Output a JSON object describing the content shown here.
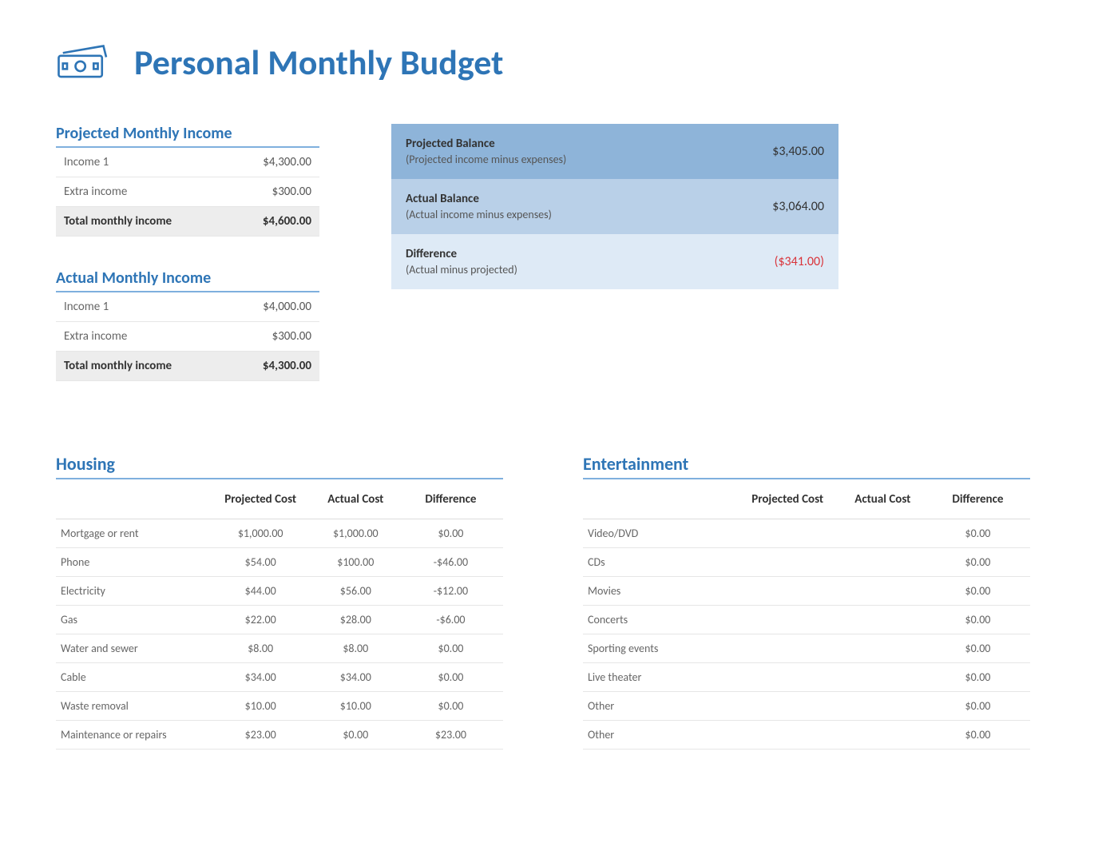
{
  "title": "Personal Monthly Budget",
  "icon_color": "#2e75b6",
  "colors": {
    "heading": "#2e75b6",
    "heading_rule": "#7fb0de",
    "row_border": "#e6e6e6",
    "total_bg": "#ededed",
    "balance_bg": [
      "#8eb4d9",
      "#b9d0e8",
      "#deeaf6"
    ],
    "negative": "#d9343a",
    "text_muted": "#666"
  },
  "projected_income": {
    "title": "Projected Monthly Income",
    "rows": [
      {
        "label": "Income 1",
        "value": "$4,300.00"
      },
      {
        "label": "Extra income",
        "value": "$300.00"
      }
    ],
    "total": {
      "label": "Total monthly income",
      "value": "$4,600.00"
    }
  },
  "actual_income": {
    "title": "Actual Monthly Income",
    "rows": [
      {
        "label": "Income 1",
        "value": "$4,000.00"
      },
      {
        "label": "Extra income",
        "value": "$300.00"
      }
    ],
    "total": {
      "label": "Total monthly income",
      "value": "$4,300.00"
    }
  },
  "balances": [
    {
      "title": "Projected Balance",
      "sub": "(Projected income minus expenses)",
      "value": "$3,405.00",
      "neg": false
    },
    {
      "title": "Actual Balance",
      "sub": "(Actual income minus expenses)",
      "value": "$3,064.00",
      "neg": false
    },
    {
      "title": "Difference",
      "sub": "(Actual minus projected)",
      "value": "($341.00)",
      "neg": true
    }
  ],
  "columns": {
    "projected": "Projected Cost",
    "actual": "Actual Cost",
    "difference": "Difference"
  },
  "housing": {
    "title": "Housing",
    "rows": [
      {
        "label": "Mortgage or rent",
        "projected": "$1,000.00",
        "actual": "$1,000.00",
        "diff": "$0.00"
      },
      {
        "label": "Phone",
        "projected": "$54.00",
        "actual": "$100.00",
        "diff": "-$46.00"
      },
      {
        "label": "Electricity",
        "projected": "$44.00",
        "actual": "$56.00",
        "diff": "-$12.00"
      },
      {
        "label": "Gas",
        "projected": "$22.00",
        "actual": "$28.00",
        "diff": "-$6.00"
      },
      {
        "label": "Water and sewer",
        "projected": "$8.00",
        "actual": "$8.00",
        "diff": "$0.00"
      },
      {
        "label": "Cable",
        "projected": "$34.00",
        "actual": "$34.00",
        "diff": "$0.00"
      },
      {
        "label": "Waste removal",
        "projected": "$10.00",
        "actual": "$10.00",
        "diff": "$0.00"
      },
      {
        "label": "Maintenance or repairs",
        "projected": "$23.00",
        "actual": "$0.00",
        "diff": "$23.00"
      }
    ]
  },
  "entertainment": {
    "title": "Entertainment",
    "rows": [
      {
        "label": "Video/DVD",
        "projected": "",
        "actual": "",
        "diff": "$0.00"
      },
      {
        "label": "CDs",
        "projected": "",
        "actual": "",
        "diff": "$0.00"
      },
      {
        "label": "Movies",
        "projected": "",
        "actual": "",
        "diff": "$0.00"
      },
      {
        "label": "Concerts",
        "projected": "",
        "actual": "",
        "diff": "$0.00"
      },
      {
        "label": "Sporting events",
        "projected": "",
        "actual": "",
        "diff": "$0.00"
      },
      {
        "label": "Live theater",
        "projected": "",
        "actual": "",
        "diff": "$0.00"
      },
      {
        "label": "Other",
        "projected": "",
        "actual": "",
        "diff": "$0.00"
      },
      {
        "label": "Other",
        "projected": "",
        "actual": "",
        "diff": "$0.00"
      }
    ]
  }
}
